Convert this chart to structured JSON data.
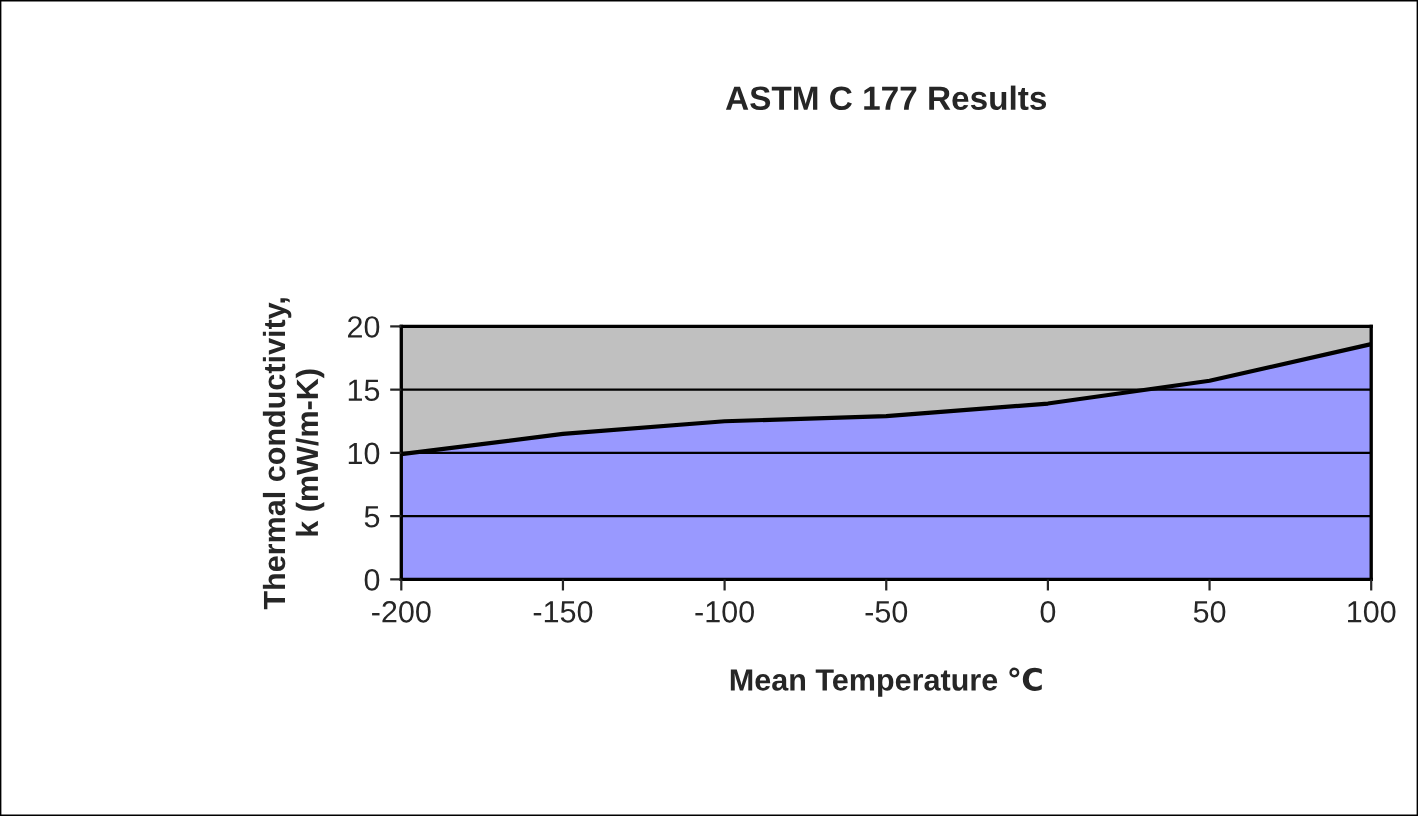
{
  "chart_data": {
    "type": "area",
    "title": "ASTM C 177 Results",
    "xlabel": "Mean Temperature ℃",
    "ylabel": "Thermal conductivity,\nk (mW/m-K)",
    "x": [
      -200,
      -150,
      -100,
      -50,
      0,
      50,
      100
    ],
    "series": [
      {
        "color": "#9999ff",
        "values": [
          9.9,
          11.5,
          12.5,
          12.9,
          13.9,
          15.7,
          18.6
        ]
      }
    ],
    "xlim": [
      -200,
      100
    ],
    "xticks": [
      -200,
      -150,
      -100,
      -50,
      0,
      50,
      100
    ],
    "ylim": [
      0,
      20
    ],
    "yticks": [
      0,
      5,
      10,
      15,
      20
    ],
    "grid": "y",
    "legend": false
  }
}
